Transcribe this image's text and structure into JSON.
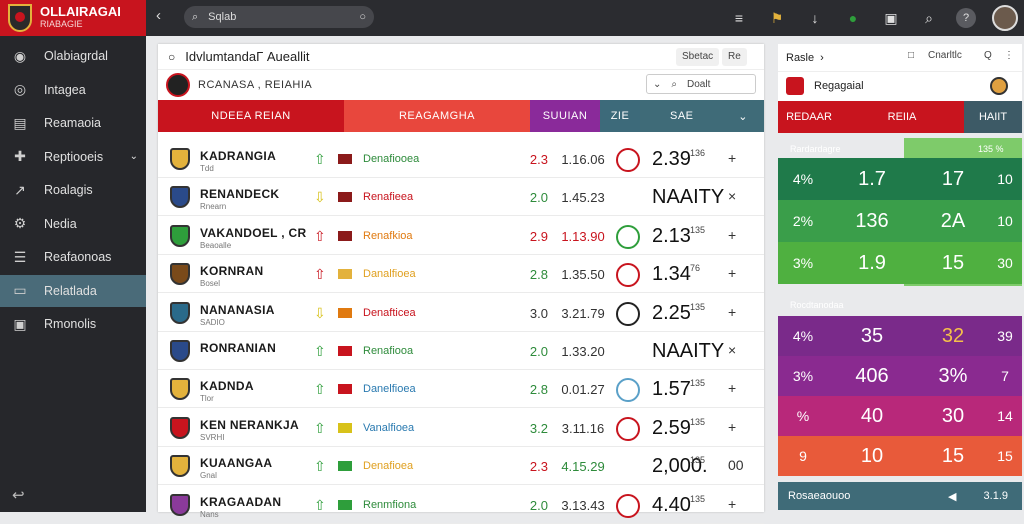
{
  "brand": {
    "name": "OLLAIRAGAI",
    "tagline": "RIABAGIE"
  },
  "sidebar": {
    "items": [
      {
        "label": "Olabiagrdal",
        "icon": "soccer-ball-icon"
      },
      {
        "label": "Intagea",
        "icon": "target-icon"
      },
      {
        "label": "Reamaoia",
        "icon": "document-icon"
      },
      {
        "label": "Reptiooeis",
        "icon": "plus-icon",
        "has_chevron": true
      },
      {
        "label": "Roalagis",
        "icon": "chart-icon"
      },
      {
        "label": "Nedia",
        "icon": "gear-icon"
      },
      {
        "label": "Reafaonoas",
        "icon": "list-icon"
      },
      {
        "label": "Relatlada",
        "icon": "monitor-icon",
        "active": true
      },
      {
        "label": "Rmonolis",
        "icon": "box-icon"
      }
    ]
  },
  "topbar": {
    "search_value": "Sqlab"
  },
  "panel": {
    "title": "IdvlumtandaΓ Aueallit",
    "btn1": "Sbetac",
    "btn2": "Re",
    "subtitle": "RCANASA , REIAHIA",
    "search_label": "Doalt"
  },
  "columns": [
    "NDEEA REIAN",
    "REAGAMGHA",
    "SUUIAN",
    "ZIE",
    "SAE"
  ],
  "rows": [
    {
      "name": "KADRANGIA",
      "sub": "Tdd",
      "arrow": "⇧",
      "arrow_color": "#2e9e3b",
      "flag": "#8b1a1a",
      "market": "Denafiooea",
      "market_color": "#2e8b3b",
      "v1": "2.3",
      "v1_color": "#c8141e",
      "v2": "1.16.06",
      "v2_color": "#333",
      "big": "2.39",
      "sup": "136",
      "act": "+",
      "crest_color": "#e3b23c",
      "icon_color": "#c8141e"
    },
    {
      "name": "RENANDECK",
      "sub": "Rnearn",
      "arrow": "⇩",
      "arrow_color": "#d8c21a",
      "flag": "#8b1a1a",
      "market": "Renafieea",
      "market_color": "#c8141e",
      "v1": "2.0",
      "v1_color": "#2e8b3b",
      "v2": "1.45.23",
      "v2_color": "#333",
      "big": "NAAITY",
      "sup": "",
      "act": "×",
      "crest_color": "#2a4a8a",
      "icon_color": ""
    },
    {
      "name": "VAKANDOEL , CR",
      "sub": "Beaoalle",
      "arrow": "⇧",
      "arrow_color": "#c8141e",
      "flag": "#8b1a1a",
      "market": "Renafkioa",
      "market_color": "#e07a10",
      "v1": "2.9",
      "v1_color": "#c8141e",
      "v2": "1.13.90",
      "v2_color": "#c8141e",
      "big": "2.13",
      "sup": "135",
      "act": "+",
      "crest_color": "#2e9e3b",
      "icon_color": "#2e9e3b"
    },
    {
      "name": "KORNRAN",
      "sub": "Bosel",
      "arrow": "⇧",
      "arrow_color": "#c8141e",
      "flag": "#e3b23c",
      "market": "Danalfioea",
      "market_color": "#e0a020",
      "v1": "2.8",
      "v1_color": "#2e8b3b",
      "v2": "1.35.50",
      "v2_color": "#333",
      "big": "1.34",
      "sup": "76",
      "act": "+",
      "crest_color": "#7a4a1a",
      "icon_color": "#c8141e"
    },
    {
      "name": "NANANASIA",
      "sub": "SADIO",
      "arrow": "⇩",
      "arrow_color": "#d8c21a",
      "flag": "#e07a10",
      "market": "Denafticea",
      "market_color": "#c8141e",
      "v1": "3.0",
      "v1_color": "#333",
      "v2": "3.21.79",
      "v2_color": "#333",
      "big": "2.25",
      "sup": "135",
      "act": "+",
      "crest_color": "#2a6a8a",
      "icon_color": "#222"
    },
    {
      "name": "RONRANIAN",
      "sub": "",
      "arrow": "⇧",
      "arrow_color": "#2e9e3b",
      "flag": "#c8141e",
      "market": "Renafiooa",
      "market_color": "#2e8b3b",
      "v1": "2.0",
      "v1_color": "#2e8b3b",
      "v2": "1.33.20",
      "v2_color": "#333",
      "big": "NAAITY",
      "sup": "",
      "act": "×",
      "crest_color": "#2a4a8a",
      "icon_color": ""
    },
    {
      "name": "KADNDA",
      "sub": "Tlor",
      "arrow": "⇧",
      "arrow_color": "#2e9e3b",
      "flag": "#c8141e",
      "market": "Danelfioea",
      "market_color": "#2a7ab0",
      "v1": "2.8",
      "v1_color": "#2e8b3b",
      "v2": "0.01.27",
      "v2_color": "#333",
      "big": "1.57",
      "sup": "135",
      "act": "+",
      "crest_color": "#e3b23c",
      "icon_color": "#5aa0c8"
    },
    {
      "name": "KEN NERANKJA",
      "sub": "SVRHI",
      "arrow": "⇧",
      "arrow_color": "#2e9e3b",
      "flag": "#d8c21a",
      "market": "Vanalfioea",
      "market_color": "#2a7ab0",
      "v1": "3.2",
      "v1_color": "#2e8b3b",
      "v2": "3.11.16",
      "v2_color": "#333",
      "big": "2.59",
      "sup": "135",
      "act": "+",
      "crest_color": "#c8141e",
      "icon_color": "#c8141e"
    },
    {
      "name": "KUAANGAA",
      "sub": "Gnal",
      "arrow": "⇧",
      "arrow_color": "#2e9e3b",
      "flag": "#2e9e3b",
      "market": "Denafioea",
      "market_color": "#e0a020",
      "v1": "2.3",
      "v1_color": "#c8141e",
      "v2": "4.15.29",
      "v2_color": "#2e8b3b",
      "big": "2,000.",
      "sup": "135",
      "act": "00",
      "crest_color": "#e3b23c",
      "icon_color": ""
    },
    {
      "name": "KRAGAADAN",
      "sub": "Nans",
      "arrow": "⇧",
      "arrow_color": "#2e9e3b",
      "flag": "#2e9e3b",
      "market": "Renmfiona",
      "market_color": "#2e8b3b",
      "v1": "2.0",
      "v1_color": "#2e8b3b",
      "v2": "3.13.43",
      "v2_color": "#333",
      "big": "4.40",
      "sup": "135",
      "act": "+",
      "crest_color": "#8a3a9a",
      "icon_color": "#c8141e"
    }
  ],
  "right": {
    "title": "Rasle",
    "btn1": "Cnarltlc",
    "btn2": "Q",
    "team": "Regagaial",
    "headers": [
      "REDAAR",
      "REIIA",
      "HAIIT"
    ],
    "green": {
      "label": "Rardardagre",
      "label2": "135 %",
      "rows": [
        [
          "4%",
          "1.7",
          "17",
          "10"
        ],
        [
          "2%",
          "136",
          "2A",
          "10"
        ],
        [
          "3%",
          "1.9",
          "15",
          "30"
        ]
      ]
    },
    "purple": {
      "label": "Rocdtanodaa",
      "rows": [
        [
          "4%",
          "35",
          "32",
          "39"
        ],
        [
          "3%",
          "406",
          "3%",
          "7"
        ],
        [
          "%",
          "40",
          "30",
          "14"
        ],
        [
          "9",
          "10",
          "15",
          "15"
        ]
      ]
    },
    "footer": "Rosaeaouoo",
    "footer_val": "3.1.9"
  }
}
